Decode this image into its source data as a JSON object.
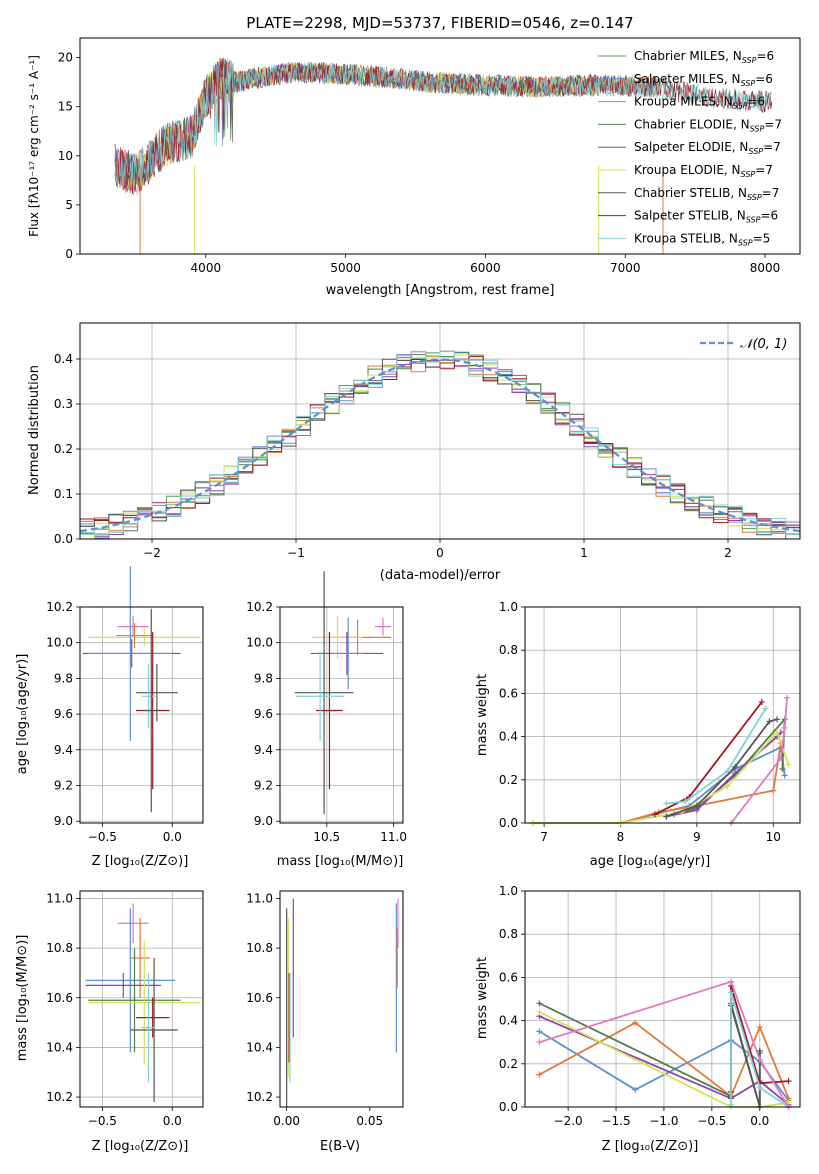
{
  "chart_data": [
    {
      "id": "spectrum",
      "type": "line",
      "title": "PLATE=2298, MJD=53737, FIBERID=0546, z=0.147",
      "xlabel": "wavelength [Angstrom, rest frame]",
      "ylabel": "Flux [fλ10⁻¹⁷ erg cm⁻² s⁻¹ A⁻¹]",
      "xlim": [
        3100,
        8250
      ],
      "ylim": [
        0,
        22
      ],
      "xticks": [
        4000,
        5000,
        6000,
        7000,
        8000
      ],
      "yticks": [
        0,
        5,
        10,
        15,
        20
      ],
      "grid": false,
      "legend_position": "top-right",
      "series": [
        {
          "name": "Chabrier MILES, N_SSP=6",
          "color": "#5a9e5a",
          "range": [
            3350,
            7250
          ]
        },
        {
          "name": "Salpeter MILES, N_SSP=6",
          "color": "#6090d8",
          "range": [
            3350,
            7250
          ]
        },
        {
          "name": "Kroupa MILES, N_SSP=6",
          "color": "#e07b39",
          "range": [
            3350,
            7250
          ]
        },
        {
          "name": "Chabrier ELODIE, N_SSP=7",
          "color": "#4f7f4f",
          "range": [
            3350,
            6800
          ]
        },
        {
          "name": "Salpeter ELODIE, N_SSP=7",
          "color": "#8e44ad",
          "range": [
            3350,
            6800
          ]
        },
        {
          "name": "Kroupa ELODIE, N_SSP=7",
          "color": "#d4e157",
          "range": [
            3350,
            6800
          ]
        },
        {
          "name": "Chabrier STELIB, N_SSP=7",
          "color": "#555555",
          "range": [
            3350,
            8050
          ]
        },
        {
          "name": "Salpeter STELIB, N_SSP=6",
          "color": "#a31621",
          "range": [
            3350,
            8050
          ]
        },
        {
          "name": "Kroupa STELIB, N_SSP=5",
          "color": "#7fd3d8",
          "range": [
            3350,
            8050
          ]
        }
      ],
      "legend_labels": [
        {
          "pre": "Chabrier MILES, N",
          "sub": "SSP",
          "post": "=6"
        },
        {
          "pre": "Salpeter MILES, N",
          "sub": "SSP",
          "post": "=6"
        },
        {
          "pre": "Kroupa MILES, N",
          "sub": "SSP",
          "post": "=6"
        },
        {
          "pre": "Chabrier ELODIE, N",
          "sub": "SSP",
          "post": "=7"
        },
        {
          "pre": "Salpeter ELODIE, N",
          "sub": "SSP",
          "post": "=7"
        },
        {
          "pre": "Kroupa ELODIE, N",
          "sub": "SSP",
          "post": "=7"
        },
        {
          "pre": "Chabrier STELIB, N",
          "sub": "SSP",
          "post": "=7"
        },
        {
          "pre": "Salpeter STELIB, N",
          "sub": "SSP",
          "post": "=6"
        },
        {
          "pre": "Kroupa STELIB, N",
          "sub": "SSP",
          "post": "=5"
        }
      ],
      "anchor_points": {
        "wavelength": [
          3350,
          3500,
          3700,
          3900,
          4000,
          4100,
          4200,
          4400,
          4600,
          4800,
          5000,
          5300,
          5600,
          6000,
          6400,
          6800,
          7200,
          7600,
          8000
        ],
        "flux": [
          9,
          8,
          11,
          12,
          16,
          18,
          17.5,
          18,
          18.5,
          18.5,
          18.3,
          18,
          17.5,
          17.2,
          17,
          17.2,
          17,
          16,
          15.5
        ]
      }
    },
    {
      "id": "residuals",
      "type": "line",
      "xlabel": "(data-model)/error",
      "ylabel": "Normed distribution",
      "xlim": [
        -2.5,
        2.5
      ],
      "ylim": [
        0,
        0.48
      ],
      "xticks": [
        -2,
        -1,
        0,
        1,
        2
      ],
      "ytick_labels": [
        "0.0",
        "0.1",
        "0.2",
        "0.3",
        "0.4"
      ],
      "grid": true,
      "legend_position": "top-right",
      "legend": "𝒩(0, 1)",
      "normal_curve_color": "#5b8fd6",
      "bin_width": 0.1
    },
    {
      "id": "age_vs_Z",
      "type": "scatter",
      "xlabel": "Z [log₁₀(Z/Z⊙)]",
      "ylabel": "age  [log₁₀(age/yr)]",
      "xlim": [
        -0.66,
        0.22
      ],
      "ylim": [
        8.99,
        10.2
      ],
      "xticks": [
        -0.5,
        0.0
      ],
      "xtick_labels": [
        "−0.5",
        "0.0"
      ],
      "yticks": [
        9.0,
        9.2,
        9.4,
        9.6,
        9.8,
        10.0,
        10.2
      ],
      "ytick_labels": [
        "9.0",
        "9.2",
        "9.4",
        "9.6",
        "9.8",
        "10.0",
        "10.2"
      ],
      "grid": true,
      "points": [
        {
          "x": -0.28,
          "y": 10.09,
          "xerr": 0.11,
          "yerr": 0.06,
          "color": "#e377c2"
        },
        {
          "x": -0.2,
          "y": 10.03,
          "xerr": 0.4,
          "yerr": 0.05,
          "color": "#d4e157"
        },
        {
          "x": -0.27,
          "y": 10.04,
          "xerr": 0.13,
          "yerr": 0.07,
          "color": "#e07b39"
        },
        {
          "x": -0.29,
          "y": 9.94,
          "xerr": 0.35,
          "yerr": 0.08,
          "color": "#8e44ad"
        },
        {
          "x": -0.3,
          "y": 9.94,
          "xerr": 0.3,
          "yerr": 0.49,
          "color": "#5b8fd6"
        },
        {
          "x": -0.11,
          "y": 9.72,
          "xerr": 0.15,
          "yerr": 0.16,
          "color": "#555555"
        },
        {
          "x": -0.14,
          "y": 9.62,
          "xerr": 0.12,
          "yerr": 0.44,
          "color": "#a31621"
        },
        {
          "x": -0.17,
          "y": 9.7,
          "xerr": 0.05,
          "yerr": 0.18,
          "color": "#7fd3d8"
        },
        {
          "x": -0.15,
          "y": 9.62,
          "xerr": 0.05,
          "yerr": 0.57,
          "color": "#555555"
        }
      ]
    },
    {
      "id": "age_vs_mass",
      "type": "scatter",
      "xlabel": "mass [log₁₀(M/M⊙)]",
      "ylabel": "",
      "xlim": [
        10.15,
        11.07
      ],
      "ylim": [
        8.99,
        10.2
      ],
      "xticks": [
        10.5,
        11.0
      ],
      "xtick_labels": [
        "10.5",
        "11.0"
      ],
      "yticks": [
        9.0,
        9.2,
        9.4,
        9.6,
        9.8,
        10.0,
        10.2
      ],
      "ytick_labels": [
        "9.0",
        "9.2",
        "9.4",
        "9.6",
        "9.8",
        "10.0",
        "10.2"
      ],
      "grid": true,
      "points": [
        {
          "x": 10.92,
          "y": 10.09,
          "xerr": 0.06,
          "yerr": 0.05,
          "color": "#e377c2"
        },
        {
          "x": 10.73,
          "y": 10.03,
          "xerr": 0.25,
          "yerr": 0.1,
          "color": "#e07b39"
        },
        {
          "x": 10.58,
          "y": 10.03,
          "xerr": 0.19,
          "yerr": 0.12,
          "color": "#d4e157"
        },
        {
          "x": 10.65,
          "y": 9.94,
          "xerr": 0.27,
          "yerr": 0.12,
          "color": "#8e44ad"
        },
        {
          "x": 10.66,
          "y": 9.94,
          "xerr": 0.12,
          "yerr": 0.2,
          "color": "#5b8fd6"
        },
        {
          "x": 10.48,
          "y": 9.72,
          "xerr": 0.22,
          "yerr": 0.68,
          "color": "#555555"
        },
        {
          "x": 10.52,
          "y": 9.62,
          "xerr": 0.1,
          "yerr": 0.44,
          "color": "#a31621"
        },
        {
          "x": 10.45,
          "y": 9.7,
          "xerr": 0.18,
          "yerr": 0.25,
          "color": "#7fd3d8"
        }
      ]
    },
    {
      "id": "mass_weight_vs_age",
      "type": "line",
      "xlabel": "age  [log₁₀(age/yr)]",
      "ylabel": "mass weight",
      "xlim": [
        6.75,
        10.35
      ],
      "ylim": [
        0,
        1
      ],
      "xticks": [
        7,
        8,
        9,
        10
      ],
      "ytick_labels": [
        "0.0",
        "0.2",
        "0.4",
        "0.6",
        "0.8",
        "1.0"
      ],
      "grid": true,
      "series": [
        {
          "color": "#5b8fd6",
          "x": [
            6.85,
            8.0,
            8.9,
            9.5,
            10.1,
            10.15
          ],
          "y": [
            0.0,
            0.0,
            0.08,
            0.25,
            0.35,
            0.22
          ]
        },
        {
          "color": "#e07b39",
          "x": [
            6.85,
            8.0,
            8.5,
            9.0,
            10.0,
            10.1
          ],
          "y": [
            0.0,
            0.0,
            0.05,
            0.08,
            0.15,
            0.37
          ]
        },
        {
          "color": "#4f7f4f",
          "x": [
            8.7,
            9.0,
            9.5,
            10.15,
            10.12
          ],
          "y": [
            0.04,
            0.07,
            0.22,
            0.48,
            0.25
          ]
        },
        {
          "color": "#8e44ad",
          "x": [
            8.6,
            9.0,
            9.5,
            10.05,
            10.1
          ],
          "y": [
            0.03,
            0.06,
            0.23,
            0.4,
            0.42
          ]
        },
        {
          "color": "#d4e157",
          "x": [
            6.85,
            8.0,
            8.8,
            9.4,
            10.05,
            10.2
          ],
          "y": [
            0.0,
            0.0,
            0.05,
            0.17,
            0.42,
            0.27
          ]
        },
        {
          "color": "#555555",
          "x": [
            8.6,
            9.0,
            9.5,
            9.95,
            10.05
          ],
          "y": [
            0.03,
            0.08,
            0.26,
            0.47,
            0.48
          ]
        },
        {
          "color": "#a31621",
          "x": [
            8.45,
            8.9,
            9.85
          ],
          "y": [
            0.04,
            0.12,
            0.56
          ]
        },
        {
          "color": "#7fd3d8",
          "x": [
            8.6,
            8.85,
            9.4,
            9.9
          ],
          "y": [
            0.09,
            0.1,
            0.24,
            0.53
          ]
        },
        {
          "color": "#e377c2",
          "x": [
            9.45,
            10.1,
            10.15,
            10.18
          ],
          "y": [
            0.0,
            0.3,
            0.44,
            0.58
          ]
        }
      ]
    },
    {
      "id": "mass_vs_Z",
      "type": "scatter",
      "xlabel": "Z [log₁₀(Z/Z⊙)]",
      "ylabel": "mass [log₁₀(M/M⊙)]",
      "xlim": [
        -0.66,
        0.22
      ],
      "ylim": [
        10.16,
        11.03
      ],
      "xticks": [
        -0.5,
        0.0
      ],
      "xtick_labels": [
        "−0.5",
        "0.0"
      ],
      "yticks": [
        10.2,
        10.4,
        10.6,
        10.8,
        11.0
      ],
      "ytick_labels": [
        "10.2",
        "10.4",
        "10.6",
        "10.8",
        "11.0"
      ],
      "grid": true,
      "points": [
        {
          "x": -0.28,
          "y": 10.9,
          "xerr": 0.11,
          "yerr": 0.08,
          "color": "#e377c2"
        },
        {
          "x": -0.23,
          "y": 10.76,
          "xerr": 0.07,
          "yerr": 0.16,
          "color": "#e07b39"
        },
        {
          "x": -0.3,
          "y": 10.67,
          "xerr": 0.32,
          "yerr": 0.29,
          "color": "#5b8fd6"
        },
        {
          "x": -0.35,
          "y": 10.65,
          "xerr": 0.27,
          "yerr": 0.05,
          "color": "#8e44ad"
        },
        {
          "x": -0.27,
          "y": 10.59,
          "xerr": 0.33,
          "yerr": 0.21,
          "color": "#4f7f4f"
        },
        {
          "x": -0.2,
          "y": 10.58,
          "xerr": 0.4,
          "yerr": 0.25,
          "color": "#d4e157"
        },
        {
          "x": -0.14,
          "y": 10.52,
          "xerr": 0.12,
          "yerr": 0.08,
          "color": "#a31621"
        },
        {
          "x": -0.13,
          "y": 10.47,
          "xerr": 0.17,
          "yerr": 0.29,
          "color": "#555555"
        },
        {
          "x": -0.17,
          "y": 10.48,
          "xerr": 0.05,
          "yerr": 0.22,
          "color": "#7fd3d8"
        }
      ]
    },
    {
      "id": "mass_vs_ebv",
      "type": "scatter",
      "xlabel": "E(B-V)",
      "ylabel": "",
      "xlim": [
        -0.004,
        0.07
      ],
      "ylim": [
        10.16,
        11.03
      ],
      "xticks": [
        0.0,
        0.05
      ],
      "xtick_labels": [
        "0.00",
        "0.05"
      ],
      "yticks": [
        10.2,
        10.4,
        10.6,
        10.8,
        11.0
      ],
      "ytick_labels": [
        "10.2",
        "10.4",
        "10.6",
        "10.8",
        "11.0"
      ],
      "grid": false,
      "points": [
        {
          "x": 0.0,
          "y": 10.56,
          "xerr": 0.0,
          "yerr": 0.4,
          "color": "#555555"
        },
        {
          "x": 0.001,
          "y": 10.6,
          "xerr": 0.0,
          "yerr": 0.32,
          "color": "#d4e157"
        },
        {
          "x": 0.0015,
          "y": 10.52,
          "xerr": 0.0,
          "yerr": 0.18,
          "color": "#a31621"
        },
        {
          "x": 0.002,
          "y": 10.48,
          "xerr": 0.0,
          "yerr": 0.22,
          "color": "#7fd3d8"
        },
        {
          "x": 0.004,
          "y": 10.72,
          "xerr": 0.0,
          "yerr": 0.28,
          "color": "#8e44ad"
        },
        {
          "x": 0.066,
          "y": 10.68,
          "xerr": 0.0,
          "yerr": 0.3,
          "color": "#5b8fd6"
        },
        {
          "x": 0.0665,
          "y": 10.76,
          "xerr": 0.0,
          "yerr": 0.12,
          "color": "#e07b39"
        },
        {
          "x": 0.067,
          "y": 10.9,
          "xerr": 0.0,
          "yerr": 0.1,
          "color": "#e377c2"
        }
      ]
    },
    {
      "id": "mass_weight_vs_Z",
      "type": "line",
      "xlabel": "Z [log₁₀(Z/Z⊙)]",
      "ylabel": "mass weight",
      "xlim": [
        -2.45,
        0.42
      ],
      "ylim": [
        0,
        1
      ],
      "xticks": [
        -2.0,
        -1.5,
        -1.0,
        -0.5,
        0.0
      ],
      "xtick_labels": [
        "−2.0",
        "−1.5",
        "−1.0",
        "−0.5",
        "0.0"
      ],
      "ytick_labels": [
        "0.0",
        "0.2",
        "0.4",
        "0.6",
        "0.8",
        "1.0"
      ],
      "grid": true,
      "series": [
        {
          "color": "#5b8fd6",
          "x": [
            -2.3,
            -1.3,
            -0.3,
            0.0,
            0.3
          ],
          "y": [
            0.35,
            0.08,
            0.31,
            0.21,
            0.03
          ]
        },
        {
          "color": "#e07b39",
          "x": [
            -2.3,
            -1.3,
            -0.3,
            0.0,
            0.3
          ],
          "y": [
            0.15,
            0.39,
            0.05,
            0.37,
            0.04
          ]
        },
        {
          "color": "#4f7f4f",
          "x": [
            -2.3,
            -0.3,
            -0.3,
            0.0,
            0.0
          ],
          "y": [
            0.48,
            0.05,
            0.48,
            0.0,
            0.25
          ]
        },
        {
          "color": "#8e44ad",
          "x": [
            -2.3,
            -0.3,
            0.0,
            0.3
          ],
          "y": [
            0.42,
            0.04,
            0.12,
            0.01
          ]
        },
        {
          "color": "#d4e157",
          "x": [
            -2.3,
            -0.3,
            0.0,
            0.3
          ],
          "y": [
            0.44,
            0.0,
            0.0,
            0.02
          ]
        },
        {
          "color": "#555555",
          "x": [
            -0.3,
            -0.3,
            0.0,
            0.0
          ],
          "y": [
            0.04,
            0.47,
            0.0,
            0.26
          ]
        },
        {
          "color": "#a31621",
          "x": [
            -0.3,
            -0.3,
            0.0,
            0.3
          ],
          "y": [
            0.07,
            0.56,
            0.11,
            0.12
          ]
        },
        {
          "color": "#7fd3d8",
          "x": [
            -0.3,
            -0.3,
            0.0,
            0.3
          ],
          "y": [
            0.01,
            0.53,
            0.09,
            0.0
          ]
        },
        {
          "color": "#e377c2",
          "x": [
            -2.3,
            -0.3,
            0.0,
            0.3
          ],
          "y": [
            0.3,
            0.58,
            0.22,
            0.0
          ]
        }
      ]
    }
  ]
}
